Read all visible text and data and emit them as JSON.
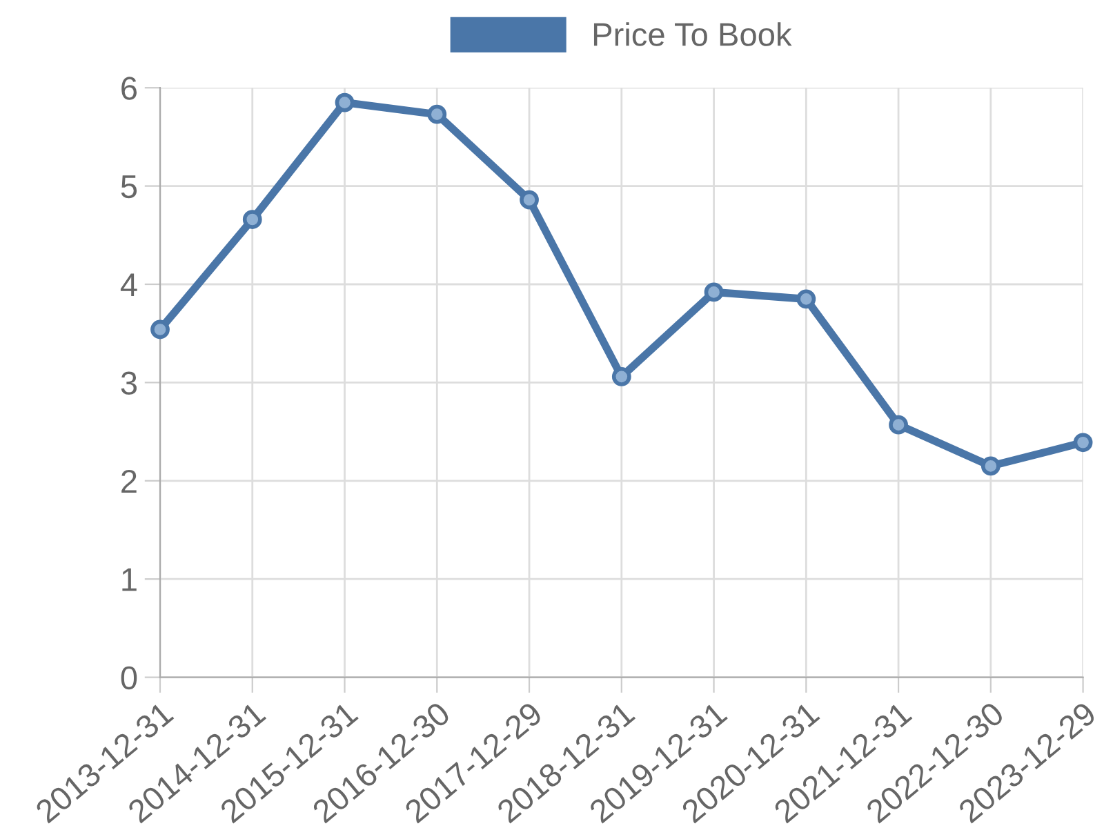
{
  "chart_data": {
    "type": "line",
    "categories": [
      "2013-12-31",
      "2014-12-31",
      "2015-12-31",
      "2016-12-30",
      "2017-12-29",
      "2018-12-31",
      "2019-12-31",
      "2020-12-31",
      "2021-12-31",
      "2022-12-30",
      "2023-12-29"
    ],
    "series": [
      {
        "name": "Price To Book",
        "color": "#4a76a8",
        "values": [
          3.54,
          4.66,
          5.85,
          5.73,
          4.86,
          3.06,
          3.92,
          3.85,
          2.57,
          2.15,
          2.39
        ]
      }
    ],
    "ylim": [
      0,
      6
    ],
    "yticks": [
      0,
      1,
      2,
      3,
      4,
      5,
      6
    ],
    "grid": true,
    "legend": "top",
    "marker": "circle",
    "line_style": "solid"
  }
}
